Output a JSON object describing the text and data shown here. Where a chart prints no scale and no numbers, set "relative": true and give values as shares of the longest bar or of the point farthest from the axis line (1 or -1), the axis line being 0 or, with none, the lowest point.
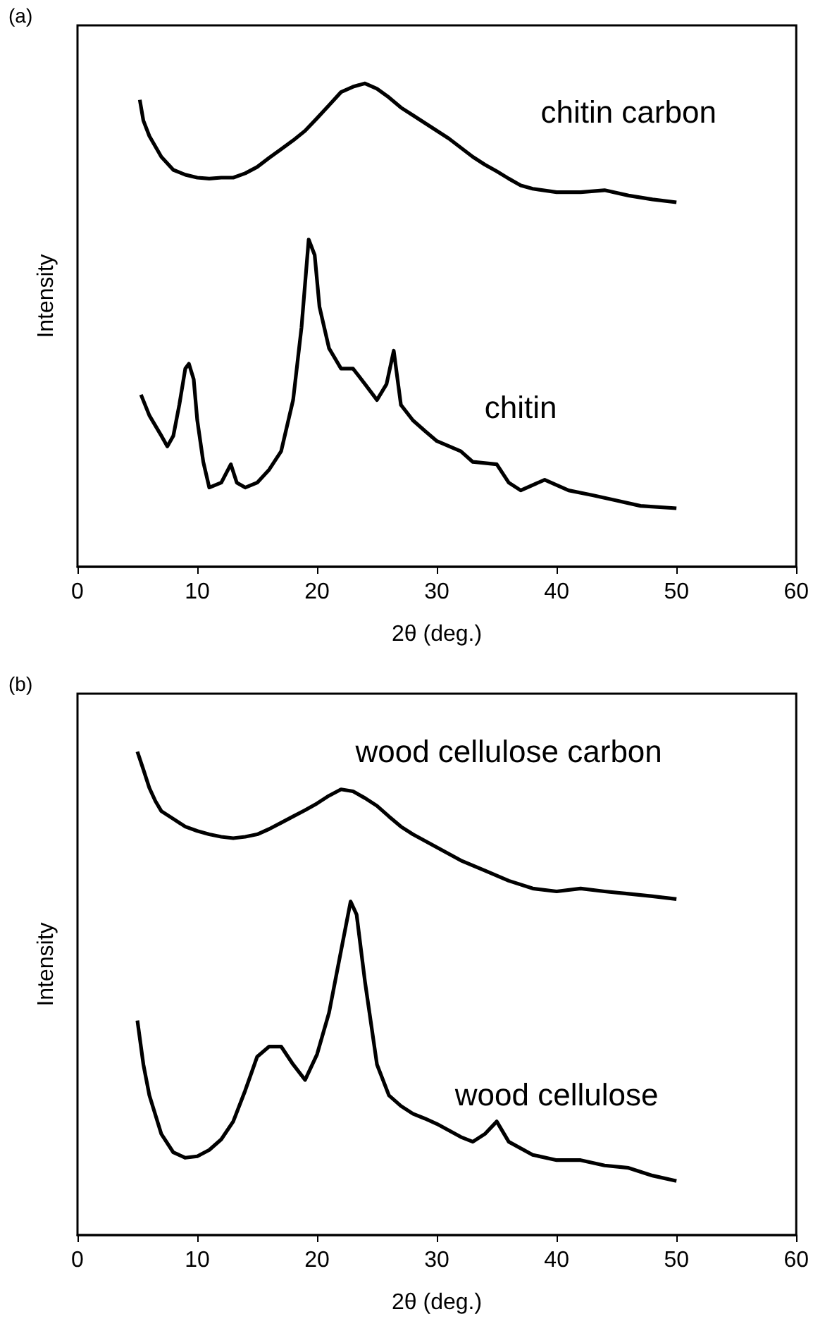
{
  "chart_data": [
    {
      "type": "line",
      "title": "(a)",
      "xlabel": "2θ (deg.)",
      "ylabel": "Intensity",
      "relative": true,
      "tick_labels": "x",
      "marker": "none",
      "xlim": [
        0,
        60
      ],
      "xticks": [
        0,
        10,
        20,
        30,
        40,
        50,
        60
      ],
      "series": [
        {
          "name": "chitin carbon",
          "color": "#000000",
          "x": [
            5.2,
            5.5,
            6,
            7,
            8,
            9,
            10,
            11,
            12,
            13,
            14,
            15,
            16,
            17,
            18,
            19,
            20,
            21,
            22,
            23,
            24,
            25,
            26,
            27,
            28,
            29,
            30,
            31,
            32,
            33,
            34,
            35,
            36,
            37,
            38,
            40,
            42,
            44,
            46,
            48,
            50
          ],
          "values": [
            0.966,
            0.923,
            0.891,
            0.848,
            0.821,
            0.811,
            0.805,
            0.803,
            0.805,
            0.805,
            0.814,
            0.827,
            0.846,
            0.864,
            0.882,
            0.902,
            0.928,
            0.955,
            0.982,
            0.993,
            1,
            0.989,
            0.971,
            0.95,
            0.934,
            0.918,
            0.902,
            0.886,
            0.867,
            0.848,
            0.832,
            0.818,
            0.803,
            0.789,
            0.782,
            0.775,
            0.775,
            0.779,
            0.768,
            0.76,
            0.754
          ]
        },
        {
          "name": "chitin",
          "color": "#000000",
          "x": [
            5.3,
            6,
            7,
            7.5,
            8,
            8.5,
            9,
            9.3,
            9.7,
            10,
            10.5,
            11,
            12,
            12.8,
            13.3,
            14,
            15,
            16,
            17,
            18,
            18.7,
            19.3,
            19.8,
            20.2,
            21,
            22,
            23,
            24,
            25,
            25.8,
            26.4,
            27,
            28,
            29,
            30,
            32,
            33,
            35,
            36,
            37,
            39,
            41,
            43,
            45,
            47,
            50
          ],
          "values": [
            0.356,
            0.313,
            0.271,
            0.249,
            0.271,
            0.335,
            0.41,
            0.42,
            0.388,
            0.303,
            0.217,
            0.164,
            0.174,
            0.212,
            0.174,
            0.164,
            0.174,
            0.201,
            0.239,
            0.345,
            0.495,
            0.677,
            0.645,
            0.538,
            0.452,
            0.41,
            0.41,
            0.378,
            0.345,
            0.378,
            0.447,
            0.335,
            0.303,
            0.281,
            0.26,
            0.239,
            0.217,
            0.212,
            0.174,
            0.158,
            0.18,
            0.158,
            0.148,
            0.137,
            0.126,
            0.121
          ]
        }
      ]
    },
    {
      "type": "line",
      "title": "(b)",
      "xlabel": "2θ (deg.)",
      "ylabel": "Intensity",
      "relative": true,
      "tick_labels": "x",
      "marker": "none",
      "xlim": [
        0,
        60
      ],
      "xticks": [
        0,
        10,
        20,
        30,
        40,
        50,
        60
      ],
      "series": [
        {
          "name": "wood cellulose carbon",
          "color": "#000000",
          "x": [
            5,
            5.5,
            6,
            6.5,
            7,
            8,
            9,
            10,
            11,
            12,
            13,
            14,
            15,
            16,
            17,
            18,
            19,
            20,
            21,
            22,
            23,
            24,
            25,
            26,
            27,
            28,
            30,
            32,
            34,
            36,
            38,
            40,
            42,
            44,
            46,
            48,
            50
          ],
          "values": [
            1,
            0.963,
            0.925,
            0.898,
            0.877,
            0.861,
            0.845,
            0.836,
            0.829,
            0.824,
            0.821,
            0.824,
            0.829,
            0.84,
            0.853,
            0.866,
            0.879,
            0.893,
            0.909,
            0.922,
            0.918,
            0.904,
            0.888,
            0.866,
            0.845,
            0.829,
            0.802,
            0.775,
            0.754,
            0.733,
            0.717,
            0.711,
            0.717,
            0.711,
            0.706,
            0.701,
            0.695
          ]
        },
        {
          "name": "wood cellulose",
          "color": "#000000",
          "x": [
            5,
            5.5,
            6,
            7,
            8,
            9,
            10,
            11,
            12,
            13,
            14,
            15,
            16,
            17,
            18,
            19,
            20,
            21,
            22,
            22.8,
            23.3,
            24,
            25,
            26,
            27,
            28,
            29,
            30,
            32,
            33,
            34,
            35,
            36,
            38,
            40,
            42,
            44,
            46,
            48,
            50
          ],
          "values": [
            0.444,
            0.353,
            0.289,
            0.209,
            0.171,
            0.16,
            0.163,
            0.176,
            0.198,
            0.235,
            0.299,
            0.369,
            0.39,
            0.39,
            0.353,
            0.321,
            0.374,
            0.46,
            0.588,
            0.69,
            0.663,
            0.524,
            0.353,
            0.289,
            0.267,
            0.251,
            0.241,
            0.23,
            0.203,
            0.193,
            0.209,
            0.235,
            0.193,
            0.166,
            0.155,
            0.155,
            0.144,
            0.139,
            0.123,
            0.112
          ]
        }
      ]
    }
  ]
}
